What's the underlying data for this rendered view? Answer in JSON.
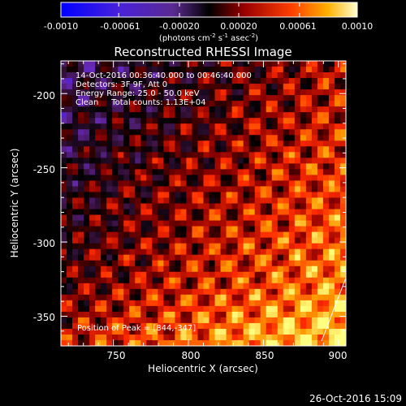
{
  "colorbar": {
    "ticks": [
      "-0.0010",
      "-0.00061",
      "-0.00020",
      "0.00020",
      "0.00061",
      "0.0010"
    ],
    "tick_values": [
      -0.001,
      -0.00061,
      -0.0002,
      0.0002,
      0.00061,
      0.001
    ],
    "range": [
      -0.001,
      0.001
    ],
    "unit_label_parts": [
      "(photons cm",
      "-2",
      " s",
      "-1",
      " asec",
      "-2",
      ")"
    ]
  },
  "chart_data": {
    "type": "heatmap",
    "title": "Reconstructed RHESSI Image",
    "xlabel": "Heliocentric X (arcsec)",
    "ylabel": "Heliocentric Y (arcsec)",
    "xlim": [
      715,
      905
    ],
    "ylim": [
      -370,
      -178
    ],
    "x_ticks": [
      "750",
      "800",
      "850",
      "900"
    ],
    "x_tick_values": [
      750,
      800,
      850,
      900
    ],
    "y_ticks": [
      "-200",
      "-250",
      "-300",
      "-350"
    ],
    "y_tick_values": [
      -200,
      -250,
      -300,
      -350
    ],
    "grid": false,
    "colormap": [
      "#0000ff",
      "#6a2bbf",
      "#3a1240",
      "#000000",
      "#8a0000",
      "#ff2a00",
      "#ff9a00",
      "#ffff80"
    ],
    "annotations": [
      "14-Oct-2016 00:36:40.000 to 00:46:40.000",
      "Detectors: 3F 9F, Att 0",
      "Energy Range: 25.0 - 50.0 keV",
      "Clean     Total counts: 1.13E+04"
    ],
    "peak_label": "Position of Peak = [844,-347]",
    "timestamp": "26-Oct-2016 15:09"
  }
}
